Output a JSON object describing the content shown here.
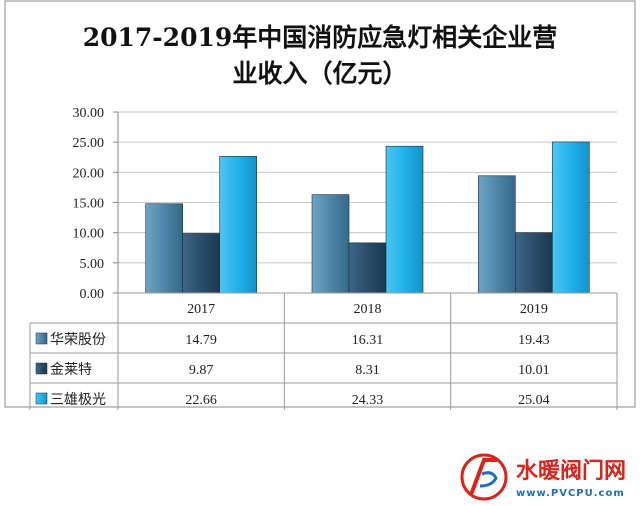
{
  "chart_data": {
    "type": "bar",
    "title_lines": [
      "2017-2019年中国消防应急灯相关企业营",
      "业收入（亿元）"
    ],
    "categories": [
      "2017",
      "2018",
      "2019"
    ],
    "ylim": [
      0,
      30
    ],
    "yticks": [
      "0.00",
      "5.00",
      "10.00",
      "15.00",
      "20.00",
      "25.00",
      "30.00"
    ],
    "grid": true,
    "legend": "data table below plot",
    "series": [
      {
        "name": "华荣股份",
        "values": [
          14.79,
          16.31,
          19.43
        ],
        "labels": [
          "14.79",
          "16.31",
          "19.43"
        ],
        "color": "#4f86a8"
      },
      {
        "name": "金莱特",
        "values": [
          9.87,
          8.31,
          10.01
        ],
        "labels": [
          "9.87",
          "8.31",
          "10.01"
        ],
        "color": "#2a4d69"
      },
      {
        "name": "三雄极光",
        "values": [
          22.66,
          24.33,
          25.04
        ],
        "labels": [
          "22.66",
          "24.33",
          "25.04"
        ],
        "color": "#21b1ea"
      }
    ]
  },
  "watermark": {
    "brand": "水暖阀门网",
    "url": "www.PVCPU.com"
  }
}
